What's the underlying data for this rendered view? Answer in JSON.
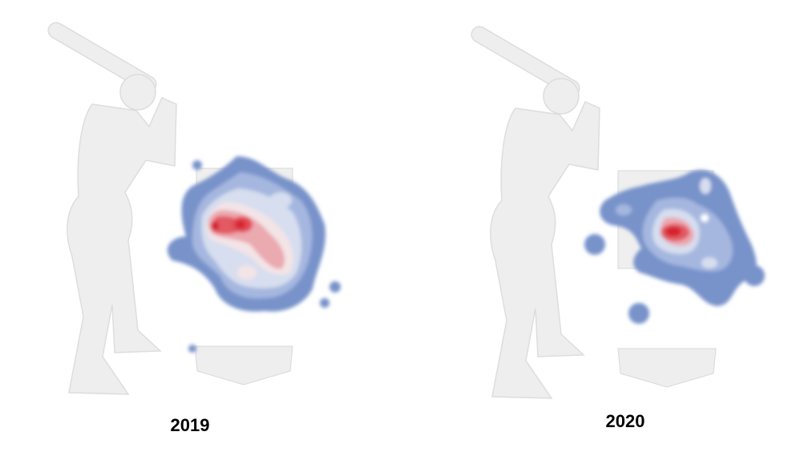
{
  "panels": [
    {
      "label": "2019"
    },
    {
      "label": "2020"
    }
  ]
}
